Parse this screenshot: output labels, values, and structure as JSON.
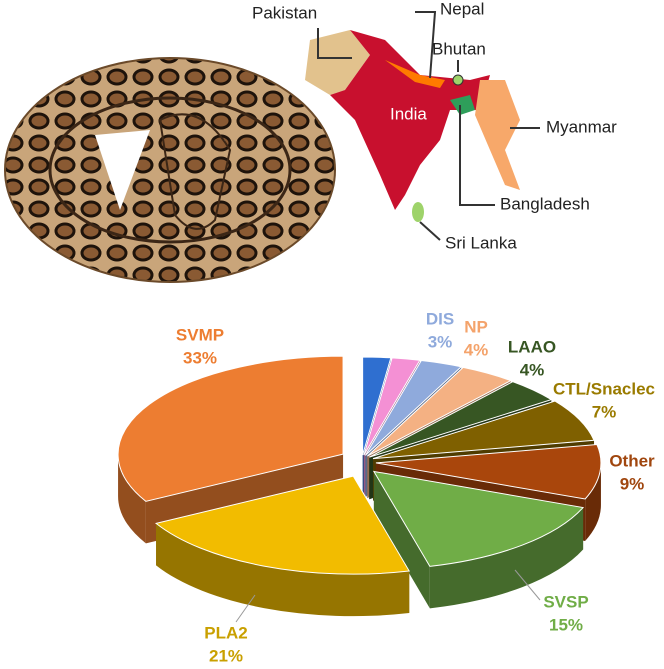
{
  "chart_data": {
    "type": "pie3d",
    "categories": [
      null,
      null,
      "DIS",
      "NP",
      "LAAO",
      "CTL/Snaclec",
      "Other",
      "SVSP",
      "PLA2",
      "SVMP"
    ],
    "values": [
      2,
      2,
      3,
      4,
      4,
      7,
      9,
      15,
      21,
      33
    ],
    "value_labels": [
      null,
      null,
      "3%",
      "4%",
      "4%",
      "7%",
      "9%",
      "15%",
      "21%",
      "33%"
    ],
    "colors": [
      "#2f6fd0",
      "#f490d4",
      "#8faadc",
      "#f4b183",
      "#375623",
      "#7f6000",
      "#a9460c",
      "#70ad47",
      "#f2bc00",
      "#ed7d31"
    ],
    "label_colors": [
      "#2f6fd0",
      "#f490d4",
      "#8faadc",
      "#f4a36b",
      "#375623",
      "#9a7b00",
      "#a0460e",
      "#70ad47",
      "#c9a000",
      "#ed7d31"
    ]
  },
  "map": {
    "labels": [
      "Pakistan",
      "Nepal",
      "Bhutan",
      "India",
      "Myanmar",
      "Bangladesh",
      "Sri Lanka"
    ]
  }
}
